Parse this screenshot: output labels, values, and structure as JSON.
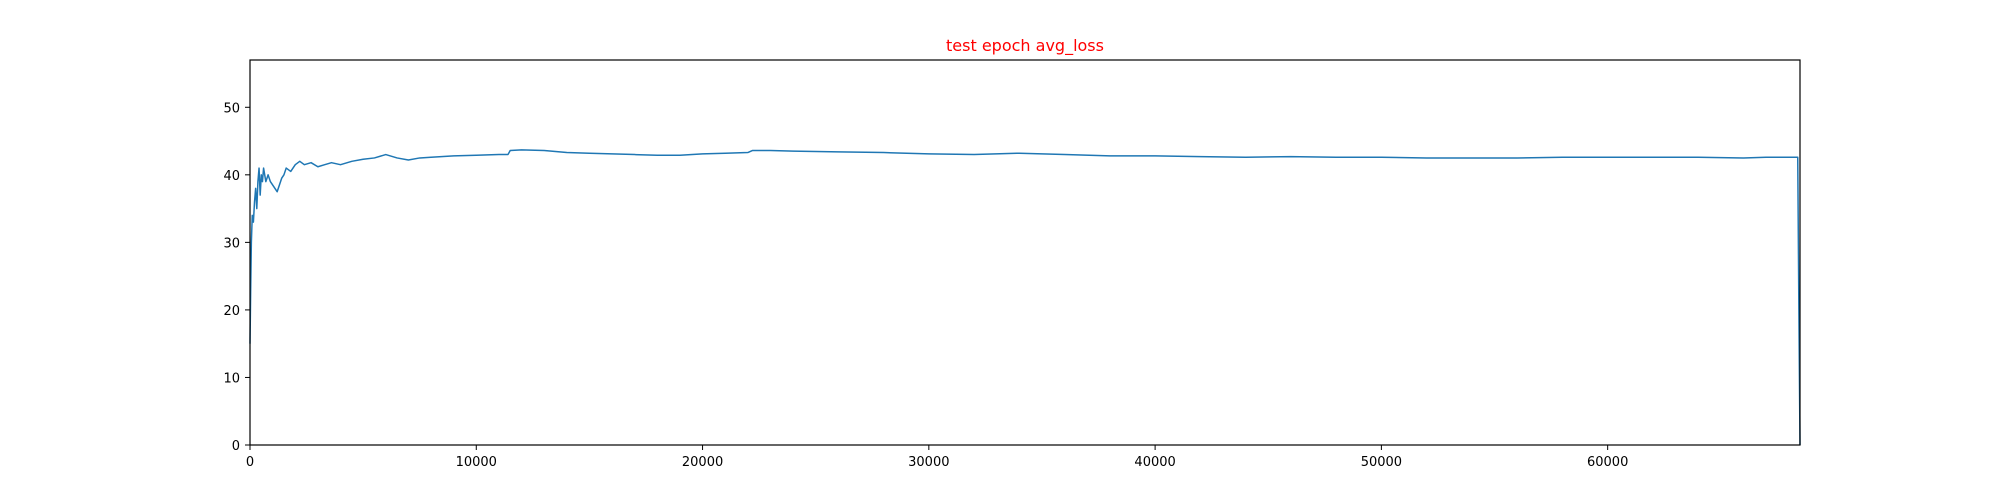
{
  "chart_data": {
    "type": "line",
    "title": "test epoch avg_loss",
    "title_color": "#ff0000",
    "xlabel": "",
    "ylabel": "",
    "xlim": [
      0,
      68500
    ],
    "ylim": [
      0,
      57
    ],
    "x_ticks": [
      0,
      10000,
      20000,
      30000,
      40000,
      50000,
      60000
    ],
    "y_ticks": [
      0,
      10,
      20,
      30,
      40,
      50
    ],
    "grid": false,
    "legend": "none",
    "series": [
      {
        "color": "#1f77b4",
        "x": [
          0,
          30,
          60,
          100,
          150,
          200,
          250,
          300,
          350,
          400,
          450,
          500,
          550,
          600,
          650,
          700,
          800,
          900,
          1000,
          1100,
          1200,
          1300,
          1400,
          1500,
          1600,
          1800,
          2000,
          2200,
          2400,
          2700,
          3000,
          3300,
          3600,
          4000,
          4500,
          5000,
          5500,
          6000,
          6500,
          7000,
          7500,
          8000,
          9000,
          10000,
          11000,
          11400,
          11500,
          12000,
          13000,
          14000,
          15000,
          16000,
          17000,
          18000,
          19000,
          20000,
          21000,
          22000,
          22200,
          23000,
          24000,
          26000,
          28000,
          30000,
          32000,
          34000,
          36000,
          38000,
          40000,
          42000,
          44000,
          46000,
          48000,
          50000,
          52000,
          54000,
          56000,
          58000,
          60000,
          62000,
          64000,
          66000,
          67000,
          68400,
          68450,
          68500
        ],
        "y": [
          15,
          23,
          30,
          34,
          33,
          36,
          38,
          35,
          39,
          41,
          37,
          40,
          39,
          41,
          40,
          39,
          40,
          39,
          38.5,
          38,
          37.5,
          38.5,
          39.5,
          40,
          41,
          40.5,
          41.5,
          42,
          41.5,
          41.8,
          41.2,
          41.5,
          41.8,
          41.5,
          42,
          42.3,
          42.5,
          43,
          42.5,
          42.2,
          42.5,
          42.6,
          42.8,
          42.9,
          43,
          43,
          43.6,
          43.7,
          43.6,
          43.3,
          43.2,
          43.1,
          43,
          42.9,
          42.9,
          43.1,
          43.2,
          43.3,
          43.6,
          43.6,
          43.5,
          43.4,
          43.3,
          43.1,
          43.0,
          43.2,
          43.0,
          42.8,
          42.8,
          42.7,
          42.6,
          42.7,
          42.6,
          42.6,
          42.5,
          42.5,
          42.5,
          42.6,
          42.6,
          42.6,
          42.6,
          42.5,
          42.6,
          42.6,
          20,
          0
        ]
      }
    ]
  }
}
